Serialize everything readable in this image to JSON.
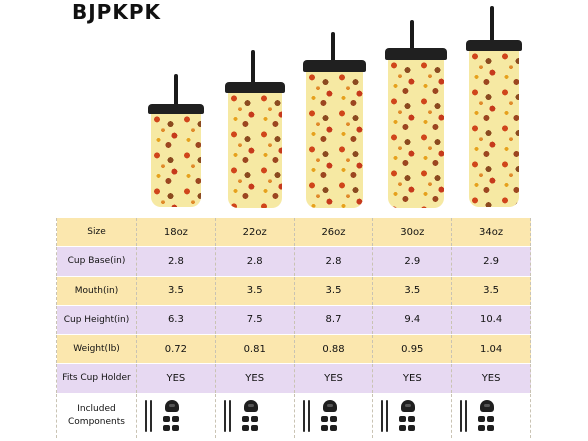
{
  "brand": {
    "name": "BJPKPK"
  },
  "cups": [
    {
      "size": "18oz"
    },
    {
      "size": "22oz"
    },
    {
      "size": "26oz"
    },
    {
      "size": "30oz"
    },
    {
      "size": "34oz"
    }
  ],
  "table": {
    "rows": [
      {
        "label": "Size",
        "values": [
          "18oz",
          "22oz",
          "26oz",
          "30oz",
          "34oz"
        ],
        "bg": "yellow"
      },
      {
        "label": "Cup Base(in)",
        "values": [
          "2.8",
          "2.8",
          "2.8",
          "2.9",
          "2.9"
        ],
        "bg": "purple"
      },
      {
        "label": "Mouth(in)",
        "values": [
          "3.5",
          "3.5",
          "3.5",
          "3.5",
          "3.5"
        ],
        "bg": "yellow"
      },
      {
        "label": "Cup Height(in)",
        "values": [
          "6.3",
          "7.5",
          "8.7",
          "9.4",
          "10.4"
        ],
        "bg": "purple"
      },
      {
        "label": "Weight(lb)",
        "values": [
          "0.72",
          "0.81",
          "0.88",
          "0.95",
          "1.04"
        ],
        "bg": "yellow"
      },
      {
        "label": "Fits Cup Holder",
        "values": [
          "YES",
          "YES",
          "YES",
          "YES",
          "YES"
        ],
        "bg": "purple"
      }
    ],
    "components_label": "Included Components"
  },
  "colors": {
    "yellow_row": "#fbe7ae",
    "purple_row": "#e7d9f2",
    "cup_body": "#f6e9a3",
    "lid": "#202020"
  }
}
